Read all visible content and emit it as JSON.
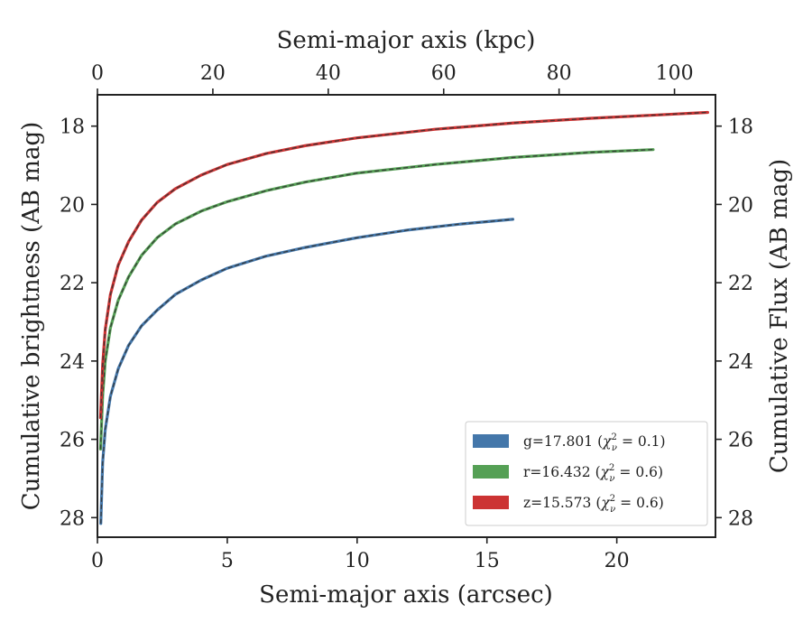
{
  "chart_data": {
    "type": "line",
    "xlabel_bottom": "Semi-major axis (arcsec)",
    "xlabel_top": "Semi-major axis (kpc)",
    "ylabel_left": "Cumulative brightness (AB mag)",
    "ylabel_right": "Cumulative Flux (AB mag)",
    "xlim_bottom": [
      0,
      23.8
    ],
    "xlim_top": [
      0,
      107.1
    ],
    "ylim": [
      28.5,
      17.2
    ],
    "y_inverted": true,
    "xticks_bottom": [
      0,
      5,
      10,
      15,
      20
    ],
    "xticks_top": [
      0,
      20,
      40,
      60,
      80,
      100
    ],
    "yticks": [
      18,
      20,
      22,
      24,
      26,
      28
    ],
    "grid": false,
    "legend_position": "lower-right",
    "series": [
      {
        "name": "g=17.801",
        "chi_value": "0.1",
        "color": "#4477aa",
        "x": [
          0.13,
          0.2,
          0.3,
          0.5,
          0.8,
          1.2,
          1.7,
          2.3,
          3,
          4,
          5,
          6.5,
          8,
          10,
          12,
          14,
          16
        ],
        "y": [
          28.15,
          26.6,
          25.75,
          24.9,
          24.2,
          23.6,
          23.1,
          22.7,
          22.3,
          21.93,
          21.63,
          21.32,
          21.1,
          20.85,
          20.65,
          20.5,
          20.38
        ]
      },
      {
        "name": "r=16.432",
        "chi_value": "0.6",
        "color": "#55a055",
        "x": [
          0.12,
          0.2,
          0.3,
          0.5,
          0.8,
          1.2,
          1.7,
          2.3,
          3,
          4,
          5,
          6.5,
          8,
          10,
          13,
          16,
          19,
          21.4
        ],
        "y": [
          26.25,
          24.9,
          24.0,
          23.15,
          22.45,
          21.85,
          21.3,
          20.85,
          20.5,
          20.17,
          19.93,
          19.65,
          19.43,
          19.2,
          18.98,
          18.8,
          18.67,
          18.6
        ]
      },
      {
        "name": "z=15.573",
        "chi_value": "0.6",
        "color": "#cc3333",
        "x": [
          0.12,
          0.2,
          0.3,
          0.5,
          0.8,
          1.2,
          1.7,
          2.3,
          3,
          4,
          5,
          6.5,
          8,
          10,
          13,
          16,
          19,
          22,
          23.5
        ],
        "y": [
          25.45,
          24.1,
          23.2,
          22.3,
          21.55,
          20.95,
          20.4,
          19.95,
          19.6,
          19.25,
          18.98,
          18.7,
          18.5,
          18.3,
          18.08,
          17.92,
          17.8,
          17.7,
          17.65
        ]
      }
    ]
  }
}
